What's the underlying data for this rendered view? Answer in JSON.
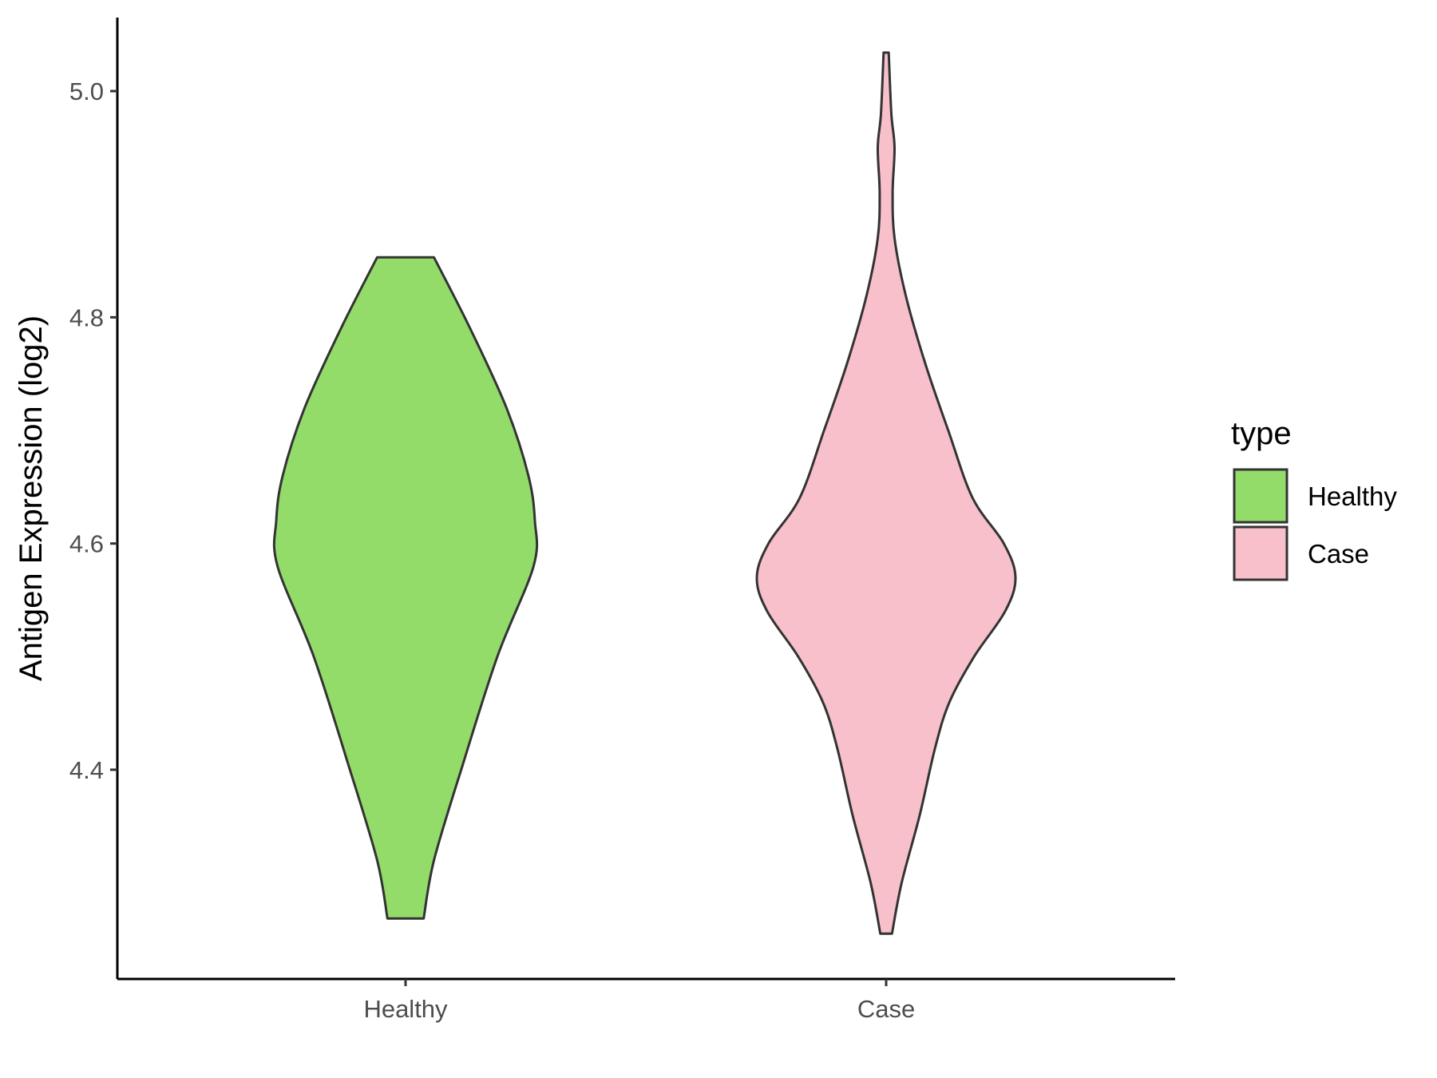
{
  "chart_data": {
    "type": "violin",
    "title": "",
    "xlabel": "",
    "ylabel": "Antigen Expression (log2)",
    "categories": [
      "Healthy",
      "Case"
    ],
    "ylim": [
      4.215,
      5.065
    ],
    "yticks": [
      4.4,
      4.6,
      4.8,
      5.0
    ],
    "ytick_labels": [
      "4.4",
      "4.6",
      "4.8",
      "5.0"
    ],
    "grid": false,
    "legend": {
      "title": "type",
      "position": "right",
      "entries": [
        {
          "label": "Healthy",
          "color": "#93dc6a"
        },
        {
          "label": "Case",
          "color": "#f8c0cb"
        }
      ]
    },
    "series": [
      {
        "name": "Healthy",
        "color": "#93dc6a",
        "profile": [
          [
            4.2685,
            0.14
          ],
          [
            4.32,
            0.22
          ],
          [
            4.4,
            0.43
          ],
          [
            4.5,
            0.71
          ],
          [
            4.58,
            0.99
          ],
          [
            4.62,
            1.0
          ],
          [
            4.66,
            0.95
          ],
          [
            4.72,
            0.78
          ],
          [
            4.79,
            0.5
          ],
          [
            4.853,
            0.22
          ]
        ]
      },
      {
        "name": "Case",
        "color": "#f8c0cb",
        "profile": [
          [
            4.255,
            0.045
          ],
          [
            4.3,
            0.12
          ],
          [
            4.36,
            0.26
          ],
          [
            4.42,
            0.38
          ],
          [
            4.46,
            0.49
          ],
          [
            4.5,
            0.68
          ],
          [
            4.54,
            0.92
          ],
          [
            4.57,
            1.0
          ],
          [
            4.6,
            0.91
          ],
          [
            4.64,
            0.67
          ],
          [
            4.7,
            0.48
          ],
          [
            4.76,
            0.3
          ],
          [
            4.82,
            0.15
          ],
          [
            4.87,
            0.065
          ],
          [
            4.91,
            0.05
          ],
          [
            4.95,
            0.065
          ],
          [
            4.98,
            0.04
          ],
          [
            5.034,
            0.02
          ]
        ]
      }
    ]
  }
}
